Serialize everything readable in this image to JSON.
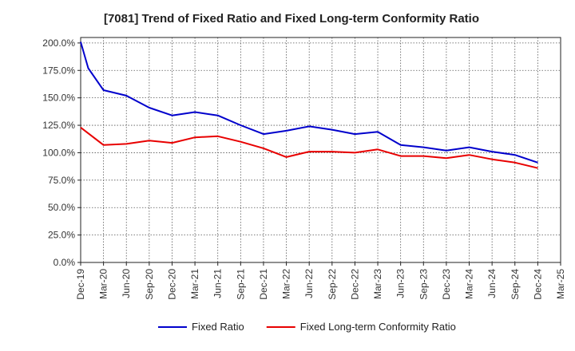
{
  "chart_data": {
    "type": "line",
    "title": "[7081]  Trend of Fixed Ratio and Fixed Long-term Conformity Ratio",
    "xlabel": "",
    "ylabel": "",
    "x_ticks": [
      "Dec-19",
      "Mar-20",
      "Jun-20",
      "Sep-20",
      "Dec-20",
      "Mar-21",
      "Jun-21",
      "Sep-21",
      "Dec-21",
      "Mar-22",
      "Jun-22",
      "Sep-22",
      "Dec-22",
      "Mar-23",
      "Jun-23",
      "Sep-23",
      "Dec-23",
      "Mar-24",
      "Jun-24",
      "Sep-24",
      "Dec-24",
      "Mar-25"
    ],
    "y_ticks": [
      "0.0%",
      "25.0%",
      "50.0%",
      "75.0%",
      "100.0%",
      "125.0%",
      "150.0%",
      "175.0%",
      "200.0%"
    ],
    "ylim": [
      0,
      205
    ],
    "grid": true,
    "legend_position": "bottom",
    "series": [
      {
        "name": "Fixed Ratio",
        "color": "#0000cc",
        "x": [
          "Dec-19",
          "Jan-20",
          "Mar-20",
          "Jun-20",
          "Sep-20",
          "Dec-20",
          "Mar-21",
          "Jun-21",
          "Sep-21",
          "Dec-21",
          "Mar-22",
          "Jun-22",
          "Sep-22",
          "Dec-22",
          "Mar-23",
          "Jun-23",
          "Sep-23",
          "Dec-23",
          "Mar-24",
          "Jun-24",
          "Sep-24",
          "Dec-24"
        ],
        "values": [
          201,
          177,
          157,
          152,
          141,
          134,
          137,
          134,
          125,
          117,
          120,
          124,
          121,
          117,
          119,
          107,
          105,
          102,
          105,
          101,
          98,
          91
        ]
      },
      {
        "name": "Fixed Long-term Conformity Ratio",
        "color": "#e80000",
        "x": [
          "Dec-19",
          "Mar-20",
          "Jun-20",
          "Sep-20",
          "Dec-20",
          "Mar-21",
          "Jun-21",
          "Sep-21",
          "Dec-21",
          "Mar-22",
          "Jun-22",
          "Sep-22",
          "Dec-22",
          "Mar-23",
          "Jun-23",
          "Sep-23",
          "Dec-23",
          "Mar-24",
          "Jun-24",
          "Sep-24",
          "Dec-24"
        ],
        "values": [
          123,
          107,
          108,
          111,
          109,
          114,
          115,
          110,
          104,
          96,
          101,
          101,
          100,
          103,
          97,
          97,
          95,
          98,
          94,
          91,
          86
        ]
      }
    ]
  }
}
